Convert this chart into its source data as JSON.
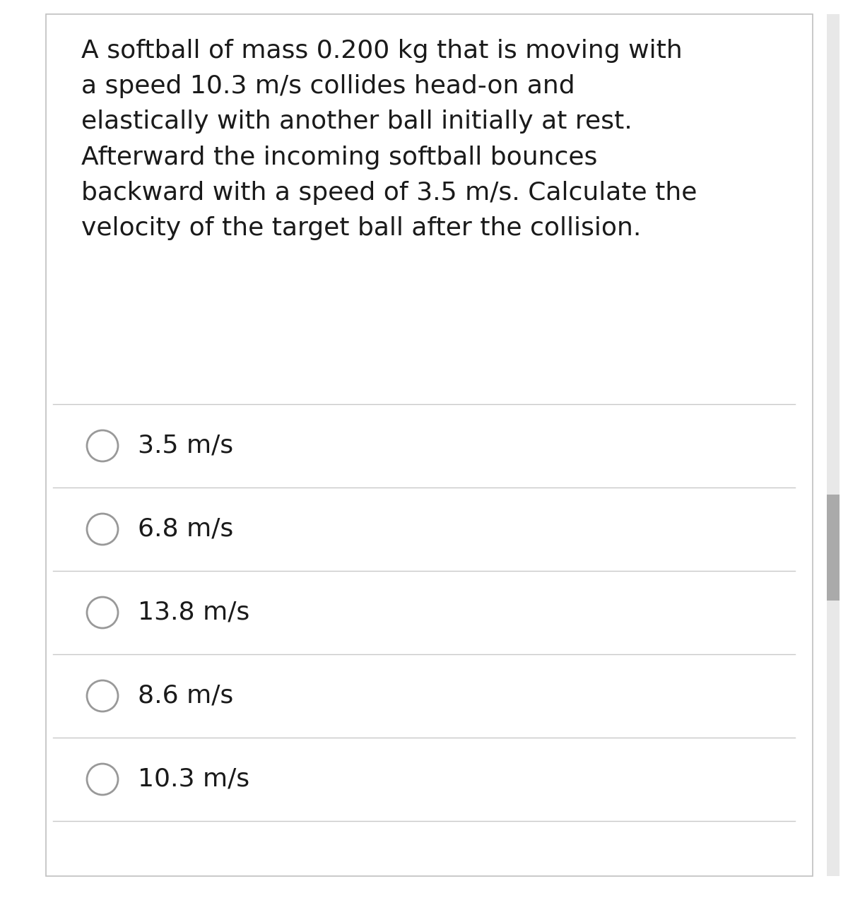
{
  "question_text": "A softball of mass 0.200 kg that is moving with\na speed 10.3 m/s collides head-on and\nelastically with another ball initially at rest.\nAfterward the incoming softball bounces\nbackward with a speed of 3.5 m/s. Calculate the\nvelocity of the target ball after the collision.",
  "options": [
    "3.5 m/s",
    "6.8 m/s",
    "13.8 m/s",
    "8.6 m/s",
    "10.3 m/s"
  ],
  "background_color": "#ffffff",
  "card_color": "#ffffff",
  "text_color": "#1a1a1a",
  "divider_color": "#c8c8c8",
  "circle_edge_color": "#999999",
  "question_font_size": 26,
  "option_font_size": 26,
  "scroll_bar_color": "#aaaaaa",
  "border_color": "#c0c0c0"
}
